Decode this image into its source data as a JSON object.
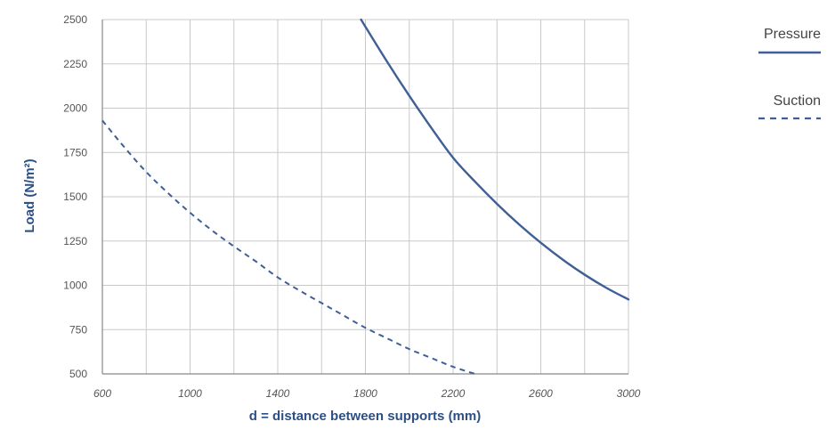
{
  "chart_data": {
    "type": "line",
    "xlabel": "d = distance between supports (mm)",
    "ylabel": "Load (N/m²)",
    "xlim": [
      600,
      3000
    ],
    "ylim": [
      500,
      2500
    ],
    "xticks": [
      600,
      1000,
      1400,
      1800,
      2200,
      2600,
      3000
    ],
    "yticks": [
      500,
      750,
      1000,
      1250,
      1500,
      1750,
      2000,
      2250,
      2500
    ],
    "x_grid_step": 200,
    "grid": true,
    "legend": {
      "placement": "right"
    },
    "series": [
      {
        "name": "Pressure",
        "style": "solid",
        "color": "#3f5f96",
        "points": [
          [
            1780,
            2500
          ],
          [
            1900,
            2260
          ],
          [
            2000,
            2070
          ],
          [
            2100,
            1890
          ],
          [
            2200,
            1720
          ],
          [
            2300,
            1585
          ],
          [
            2400,
            1460
          ],
          [
            2500,
            1345
          ],
          [
            2600,
            1240
          ],
          [
            2700,
            1145
          ],
          [
            2800,
            1060
          ],
          [
            2900,
            985
          ],
          [
            3000,
            920
          ]
        ]
      },
      {
        "name": "Suction",
        "style": "dashed",
        "color": "#3f5f96",
        "points": [
          [
            600,
            1930
          ],
          [
            700,
            1780
          ],
          [
            800,
            1640
          ],
          [
            900,
            1520
          ],
          [
            1000,
            1410
          ],
          [
            1100,
            1310
          ],
          [
            1200,
            1220
          ],
          [
            1300,
            1135
          ],
          [
            1400,
            1045
          ],
          [
            1500,
            970
          ],
          [
            1600,
            900
          ],
          [
            1700,
            830
          ],
          [
            1800,
            760
          ],
          [
            1900,
            700
          ],
          [
            2000,
            640
          ],
          [
            2100,
            590
          ],
          [
            2200,
            540
          ],
          [
            2300,
            500
          ]
        ]
      }
    ]
  }
}
